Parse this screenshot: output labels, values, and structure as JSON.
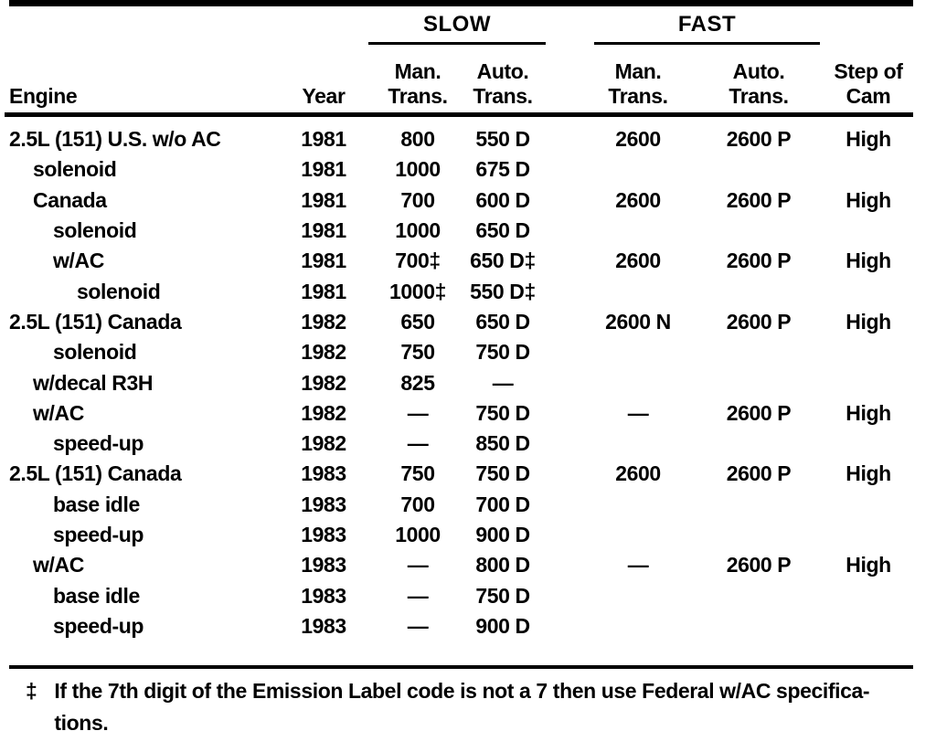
{
  "colors": {
    "ink": "#000000",
    "paper": "#ffffff"
  },
  "table": {
    "header": {
      "engine": "Engine",
      "year": "Year",
      "slow_group": "SLOW",
      "fast_group": "FAST",
      "man_line1": "Man.",
      "man_line2": "Trans.",
      "auto_line1": "Auto.",
      "auto_line2": "Trans.",
      "cam_line1": "Step of",
      "cam_line2": "Cam"
    },
    "rows": [
      {
        "engine": "2.5L (151) U.S. w/o AC",
        "indent": 0,
        "year": "1981",
        "slow_man": "800",
        "slow_auto": "550 D",
        "fast_man": "2600",
        "fast_auto": "2600 P",
        "cam": "High"
      },
      {
        "engine": "solenoid",
        "indent": 1,
        "year": "1981",
        "slow_man": "1000",
        "slow_auto": "675 D",
        "fast_man": "",
        "fast_auto": "",
        "cam": ""
      },
      {
        "engine": "Canada",
        "indent": 1,
        "year": "1981",
        "slow_man": "700",
        "slow_auto": "600 D",
        "fast_man": "2600",
        "fast_auto": "2600 P",
        "cam": "High"
      },
      {
        "engine": "solenoid",
        "indent": 2,
        "year": "1981",
        "slow_man": "1000",
        "slow_auto": "650 D",
        "fast_man": "",
        "fast_auto": "",
        "cam": ""
      },
      {
        "engine": "w/AC",
        "indent": 2,
        "year": "1981",
        "slow_man": "700‡",
        "slow_auto": "650 D‡",
        "fast_man": "2600",
        "fast_auto": "2600 P",
        "cam": "High"
      },
      {
        "engine": "solenoid",
        "indent": 3,
        "year": "1981",
        "slow_man": "1000‡",
        "slow_auto": "550 D‡",
        "fast_man": "",
        "fast_auto": "",
        "cam": ""
      },
      {
        "engine": "2.5L (151) Canada",
        "indent": 0,
        "year": "1982",
        "slow_man": "650",
        "slow_auto": "650 D",
        "fast_man": "2600 N",
        "fast_auto": "2600 P",
        "cam": "High"
      },
      {
        "engine": "solenoid",
        "indent": 2,
        "year": "1982",
        "slow_man": "750",
        "slow_auto": "750 D",
        "fast_man": "",
        "fast_auto": "",
        "cam": ""
      },
      {
        "engine": "w/decal R3H",
        "indent": 1,
        "year": "1982",
        "slow_man": "825",
        "slow_auto": "—",
        "fast_man": "",
        "fast_auto": "",
        "cam": ""
      },
      {
        "engine": "w/AC",
        "indent": 1,
        "year": "1982",
        "slow_man": "—",
        "slow_auto": "750 D",
        "fast_man": "—",
        "fast_auto": "2600 P",
        "cam": "High"
      },
      {
        "engine": "speed-up",
        "indent": 2,
        "year": "1982",
        "slow_man": "—",
        "slow_auto": "850 D",
        "fast_man": "",
        "fast_auto": "",
        "cam": ""
      },
      {
        "engine": "2.5L (151) Canada",
        "indent": 0,
        "year": "1983",
        "slow_man": "750",
        "slow_auto": "750 D",
        "fast_man": "2600",
        "fast_auto": "2600 P",
        "cam": "High"
      },
      {
        "engine": "base idle",
        "indent": 2,
        "year": "1983",
        "slow_man": "700",
        "slow_auto": "700 D",
        "fast_man": "",
        "fast_auto": "",
        "cam": ""
      },
      {
        "engine": "speed-up",
        "indent": 2,
        "year": "1983",
        "slow_man": "1000",
        "slow_auto": "900 D",
        "fast_man": "",
        "fast_auto": "",
        "cam": ""
      },
      {
        "engine": "w/AC",
        "indent": 1,
        "year": "1983",
        "slow_man": "—",
        "slow_auto": "800 D",
        "fast_man": "—",
        "fast_auto": "2600 P",
        "cam": "High"
      },
      {
        "engine": "base idle",
        "indent": 2,
        "year": "1983",
        "slow_man": "—",
        "slow_auto": "750 D",
        "fast_man": "",
        "fast_auto": "",
        "cam": ""
      },
      {
        "engine": "speed-up",
        "indent": 2,
        "year": "1983",
        "slow_man": "—",
        "slow_auto": "900 D",
        "fast_man": "",
        "fast_auto": "",
        "cam": ""
      }
    ]
  },
  "footnote": {
    "symbol": "‡",
    "line1": "If the 7th digit of the Emission Label code is not a 7 then use Federal w/AC specifica-",
    "line2": "tions."
  }
}
